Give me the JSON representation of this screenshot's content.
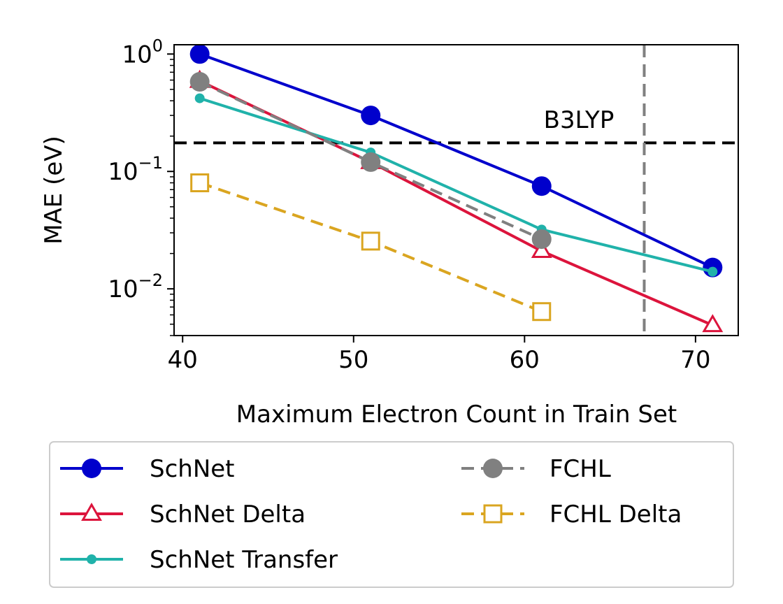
{
  "chart_data": {
    "type": "line",
    "xlabel": "Maximum Electron Count in Train Set",
    "ylabel": "MAE (eV)",
    "yscale": "log",
    "xlim": [
      39.5,
      72.5
    ],
    "ylim": [
      0.004,
      1.2
    ],
    "xticks": [
      40,
      50,
      60,
      70
    ],
    "xtick_labels": [
      "40",
      "50",
      "60",
      "70"
    ],
    "yticks": [
      {
        "value": 1,
        "base": "10",
        "exp": "0"
      },
      {
        "value": 0.1,
        "base": "10",
        "exp": "−1"
      },
      {
        "value": 0.01,
        "base": "10",
        "exp": "−2"
      }
    ],
    "hlines": [
      {
        "y": 0.175,
        "style": "dashed",
        "color": "#000000",
        "label": "B3LYP"
      }
    ],
    "vlines": [
      {
        "x": 67,
        "style": "dashed",
        "color": "#808080"
      }
    ],
    "legend_position": "below",
    "legend_columns": 2,
    "series": [
      {
        "name": "SchNet",
        "color": "#0000cc",
        "marker": "circle-filled",
        "linestyle": "solid",
        "x": [
          41,
          51,
          61,
          71
        ],
        "y": [
          1.0,
          0.3,
          0.075,
          0.0152
        ]
      },
      {
        "name": "SchNet Delta",
        "color": "#dc143c",
        "marker": "triangle-open",
        "linestyle": "solid",
        "x": [
          41,
          51,
          61,
          71
        ],
        "y": [
          0.59,
          0.12,
          0.021,
          0.0049
        ]
      },
      {
        "name": "SchNet Transfer",
        "color": "#20b2aa",
        "marker": "dot-small",
        "linestyle": "solid",
        "x": [
          41,
          51,
          61,
          71
        ],
        "y": [
          0.42,
          0.145,
          0.032,
          0.014
        ]
      },
      {
        "name": "FCHL",
        "color": "#808080",
        "marker": "circle-filled",
        "linestyle": "dashed",
        "x": [
          41,
          51,
          61
        ],
        "y": [
          0.58,
          0.12,
          0.0265
        ]
      },
      {
        "name": "FCHL Delta",
        "color": "#daa520",
        "marker": "square-open",
        "linestyle": "dashed",
        "x": [
          41,
          51,
          61
        ],
        "y": [
          0.08,
          0.0255,
          0.0064
        ]
      }
    ]
  }
}
